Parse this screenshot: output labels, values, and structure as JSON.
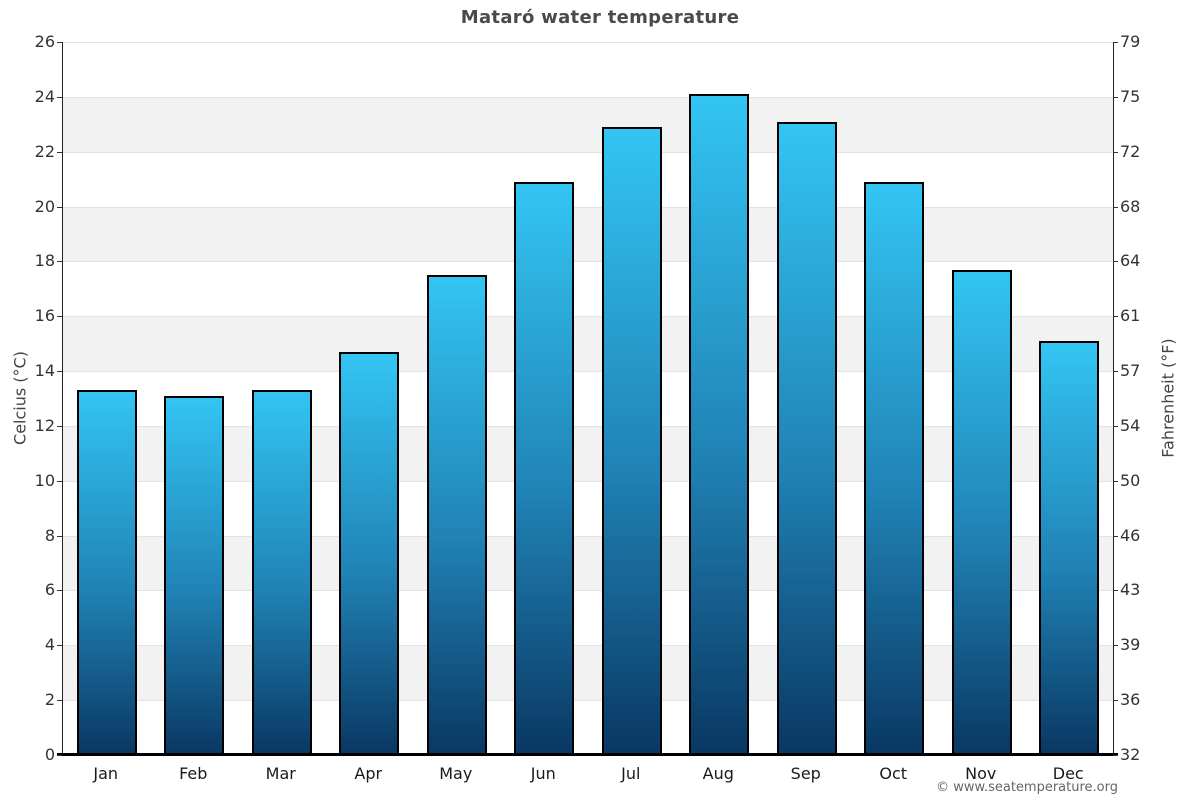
{
  "title": "Mataró water temperature",
  "axes": {
    "left_label": "Celcius (°C)",
    "right_label": "Fahrenheit (°F)"
  },
  "footer": {
    "copyright": "© www.seatemperature.org"
  },
  "chart_data": {
    "type": "bar",
    "title": "Mataró water temperature",
    "categories": [
      "Jan",
      "Feb",
      "Mar",
      "Apr",
      "May",
      "Jun",
      "Jul",
      "Aug",
      "Sep",
      "Oct",
      "Nov",
      "Dec"
    ],
    "values": [
      13.3,
      13.1,
      13.3,
      14.7,
      17.5,
      20.9,
      22.9,
      24.1,
      23.1,
      20.9,
      17.7,
      15.1
    ],
    "xlabel": "",
    "ylabel": "Celcius (°C)",
    "ylabel_right": "Fahrenheit (°F)",
    "ylim": [
      0,
      26
    ],
    "y_tick_step": 2,
    "y_ticks_celsius": [
      0,
      2,
      4,
      6,
      8,
      10,
      12,
      14,
      16,
      18,
      20,
      22,
      24,
      26
    ],
    "y_ticks_fahrenheit": [
      32,
      36,
      39,
      43,
      46,
      50,
      54,
      57,
      61,
      64,
      68,
      72,
      75,
      79
    ],
    "grid": "alternating horizontal bands every 2°C, gray on 2-4/6-8/10-12/14-16/18-20/22-24",
    "legend": false,
    "colors": {
      "bar_gradient_top": "#33c5f3",
      "bar_gradient_mid": "#2082b5",
      "bar_gradient_bottom": "#0a3863",
      "bar_border": "#000000",
      "band_gray": "#f2f2f2",
      "band_white": "#ffffff",
      "axis_line": "#000000",
      "tick_text": "#333333",
      "title_text": "#4a4a4a",
      "copyright_text": "#666666"
    }
  }
}
